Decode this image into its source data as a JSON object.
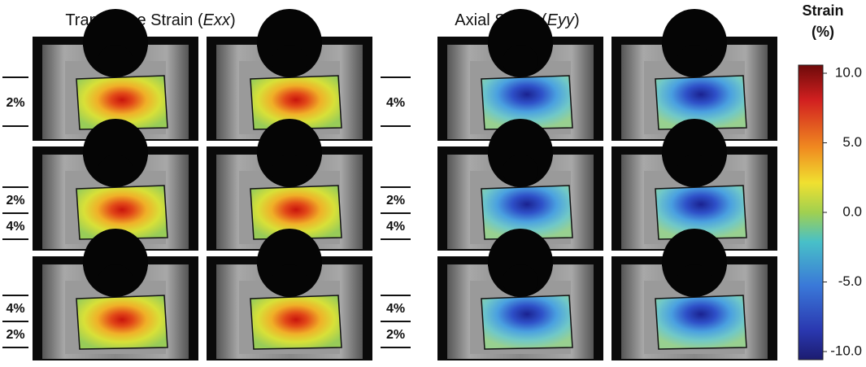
{
  "left_title": {
    "text": "Transverse Strain (",
    "variable": "Exx",
    "close": ")"
  },
  "right_title": {
    "text": "Axial Strain (",
    "variable": "Eyy",
    "close": ")"
  },
  "colorbar": {
    "title": [
      "Strain",
      "(%)"
    ],
    "lim": [
      -10,
      10
    ],
    "ticks": [
      {
        "value": 10,
        "label": "10.0"
      },
      {
        "value": 5,
        "label": "5.0"
      },
      {
        "value": 0,
        "label": "0.0"
      },
      {
        "value": -5,
        "label": "-5.0"
      },
      {
        "value": -10,
        "label": "-10.0"
      }
    ]
  },
  "row_labels_left": [
    [
      "2%"
    ],
    [
      "2%",
      "4%"
    ],
    [
      "4%",
      "2%"
    ]
  ],
  "row_labels_right": [
    [
      "4%"
    ],
    [
      "2%",
      "4%"
    ],
    [
      "4%",
      "2%"
    ]
  ]
}
